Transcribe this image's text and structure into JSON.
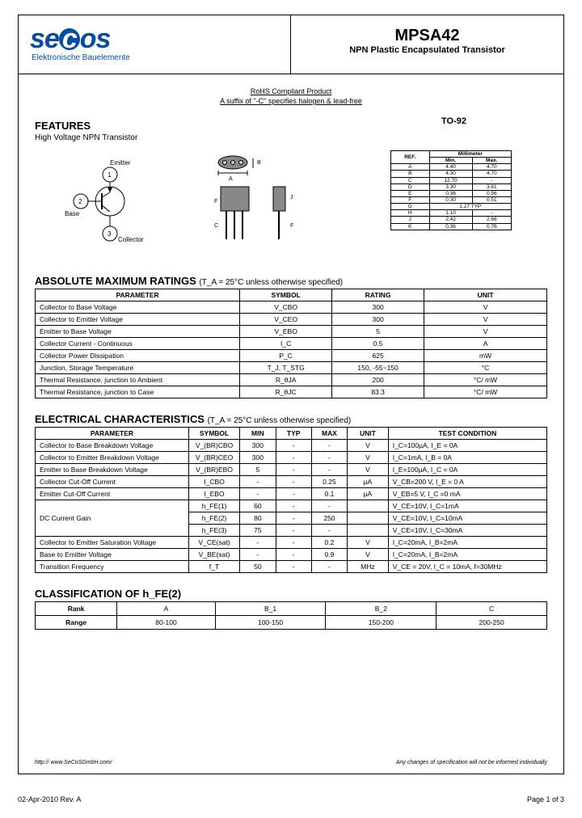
{
  "header": {
    "logo_main": "secos",
    "logo_sub": "Elektronische Bauelemente",
    "part_number": "MPSA42",
    "part_desc": "NPN Plastic Encapsulated Transistor"
  },
  "rohs_line1": "RoHS Compliant Product",
  "rohs_line2": "A suffix of \"-C\" specifies halogen & lead-free",
  "features": {
    "title": "FEATURES",
    "text": "High Voltage NPN Transistor",
    "package": "TO-92"
  },
  "pins": {
    "emitter": "Emitter",
    "base": "Base",
    "collector": "Collector"
  },
  "dim_table": {
    "headers": [
      "REF.",
      "Min.",
      "Max."
    ],
    "unit_header": "Millimeter",
    "rows": [
      [
        "A",
        "4.40",
        "4.70"
      ],
      [
        "B",
        "4.30",
        "4.70"
      ],
      [
        "C",
        "12.70",
        "-"
      ],
      [
        "D",
        "3.30",
        "3.81"
      ],
      [
        "E",
        "0.36",
        "0.56"
      ],
      [
        "F",
        "0.30",
        "0.51"
      ],
      [
        "G",
        "1.27 TYP",
        ""
      ],
      [
        "H",
        "1.10",
        "-"
      ],
      [
        "J",
        "2.42",
        "2.66"
      ],
      [
        "K",
        "0.36",
        "0.76"
      ]
    ]
  },
  "abs_max": {
    "title": "ABSOLUTE MAXIMUM RATINGS",
    "cond": "(T_A = 25°C unless otherwise specified)",
    "headers": [
      "PARAMETER",
      "SYMBOL",
      "RATING",
      "UNIT"
    ],
    "rows": [
      [
        "Collector to Base Voltage",
        "V_CBO",
        "300",
        "V"
      ],
      [
        "Collector to Emitter Voltage",
        "V_CEO",
        "300",
        "V"
      ],
      [
        "Emitter to Base Voltage",
        "V_EBO",
        "5",
        "V"
      ],
      [
        "Collector Current - Continuous",
        "I_C",
        "0.5",
        "A"
      ],
      [
        "Collector Power Dissipation",
        "P_C",
        "625",
        "mW"
      ],
      [
        "Junction, Storage Temperature",
        "T_J, T_STG",
        "150, -55~150",
        "°C"
      ],
      [
        "Thermal Resistance, junction to Ambient",
        "R_θJA",
        "200",
        "°C/ mW"
      ],
      [
        "Thermal Resistance, junction to Case",
        "R_θJC",
        "83.3",
        "°C/ mW"
      ]
    ]
  },
  "elec": {
    "title": "ELECTRICAL CHARACTERISTICS",
    "cond": "(T_A = 25°C unless otherwise specified)",
    "headers": [
      "PARAMETER",
      "SYMBOL",
      "MIN",
      "TYP",
      "MAX",
      "UNIT",
      "TEST CONDITION"
    ],
    "rows": [
      [
        "Collector to Base Breakdown Voltage",
        "V_(BR)CBO",
        "300",
        "-",
        "-",
        "V",
        "I_C=100µA, I_E = 0A"
      ],
      [
        "Collector to Emitter Breakdown Voltage",
        "V_(BR)CEO",
        "300",
        "-",
        "-",
        "V",
        "I_C=1mA, I_B = 0A"
      ],
      [
        "Emitter to Base Breakdown Voltage",
        "V_(BR)EBO",
        "5",
        "-",
        "-",
        "V",
        "I_E=100µA, I_C = 0A"
      ],
      [
        "Collector Cut-Off Current",
        "I_CBO",
        "-",
        "-",
        "0.25",
        "µA",
        "V_CB=200 V, I_E = 0 A"
      ],
      [
        "Emitter Cut-Off Current",
        "I_EBO",
        "-",
        "-",
        "0.1",
        "µA",
        "V_EB=5 V, I_C =0 mA"
      ],
      [
        "DC Current Gain",
        "h_FE(1)",
        "60",
        "-",
        "-",
        "",
        "V_CE=10V, I_C=1mA"
      ],
      [
        "",
        "h_FE(2)",
        "80",
        "-",
        "250",
        "",
        "V_CE=10V, I_C=10mA"
      ],
      [
        "",
        "h_FE(3)",
        "75",
        "-",
        "-",
        "",
        "V_CE=10V, I_C=30mA"
      ],
      [
        "Collector to Emitter Saturation Voltage",
        "V_CE(sat)",
        "-",
        "-",
        "0.2",
        "V",
        "I_C=20mA, I_B=2mA"
      ],
      [
        "Base to Emitter Voltage",
        "V_BE(sat)",
        "-",
        "-",
        "0.9",
        "V",
        "I_C=20mA, I_B=2mA"
      ],
      [
        "Transition Frequency",
        "f_T",
        "50",
        "-",
        "-",
        "MHz",
        "V_CE = 20V, I_C = 10mA, f=30MHz"
      ]
    ]
  },
  "classification": {
    "title": "CLASSIFICATION OF h_FE(2)",
    "headers": [
      "Rank",
      "A",
      "B_1",
      "B_2",
      "C"
    ],
    "row": [
      "Range",
      "80-100",
      "100-150",
      "150-200",
      "200-250"
    ]
  },
  "footer": {
    "url": "http:// www.SeCoSGmbH.com/",
    "disclaimer": "Any changes of specification will not be informed individually",
    "date": "02-Apr-2010 Rev. A",
    "page": "Page  1  of  3"
  }
}
